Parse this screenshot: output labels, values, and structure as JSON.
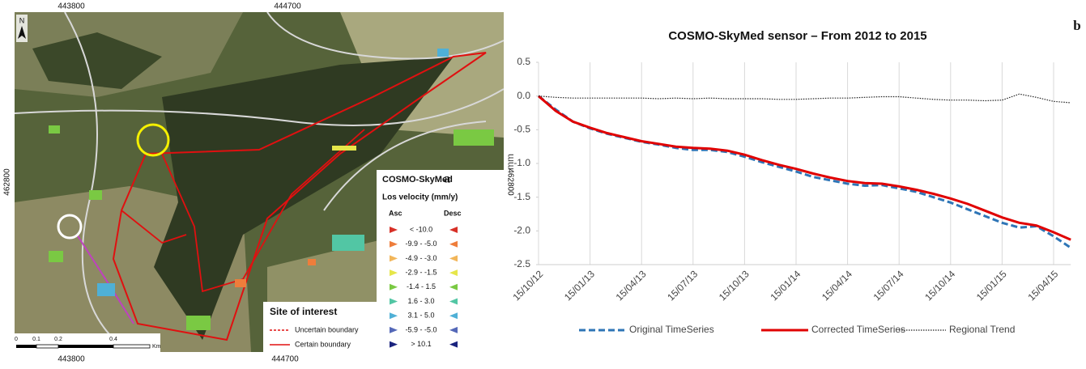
{
  "map": {
    "north": "N",
    "panel": "a",
    "coords": {
      "top": [
        "443800",
        "444700"
      ],
      "bottom": [
        "443800",
        "444700"
      ],
      "left": "462800",
      "right": "462800"
    },
    "legend": {
      "title": "COSMO-SkyMed",
      "subtitle": "Los velocity (mm/y)",
      "asc": "Asc",
      "desc": "Desc",
      "classes": [
        {
          "label": "< -10.0",
          "color": "#d73027"
        },
        {
          "label": "-9.9 - -5.0",
          "color": "#ee7d3b"
        },
        {
          "label": "-4.9 - -3.0",
          "color": "#f2b65a"
        },
        {
          "label": "-2.9 - -1.5",
          "color": "#e6e64a"
        },
        {
          "label": "-1.4 - 1.5",
          "color": "#7ac943"
        },
        {
          "label": "1.6 - 3.0",
          "color": "#52c6a4"
        },
        {
          "label": "3.1 - 5.0",
          "color": "#4fb0d6"
        },
        {
          "label": "-5.9 - -5.0",
          "color": "#5468b8"
        },
        {
          "label": "> 10.1",
          "color": "#1a237e"
        }
      ]
    },
    "site_legend": {
      "title": "Site of interest",
      "items": [
        "Uncertain boundary",
        "Certain boundary"
      ]
    },
    "scale": [
      "0",
      "0.1",
      "0.2",
      "0.4",
      "Km"
    ]
  },
  "chart_data": {
    "type": "line",
    "title": "COSMO-SkyMed sensor – From 2012 to 2015",
    "panel": "b",
    "ylabel": "mm",
    "categories": [
      "15/10/12",
      null,
      null,
      "15/01/13",
      null,
      null,
      "15/04/13",
      null,
      null,
      "15/07/13",
      null,
      null,
      "15/10/13",
      null,
      null,
      "15/01/14",
      null,
      null,
      "15/04/14",
      null,
      null,
      "15/07/14",
      null,
      null,
      "15/10/14",
      null,
      null,
      "15/01/15",
      null,
      null,
      "15/04/15",
      null
    ],
    "series": [
      {
        "name": "Original TimeSeries",
        "color": "#2e75b6",
        "style": "dashed",
        "values": [
          0.0,
          -0.2,
          -0.38,
          -0.48,
          -0.56,
          -0.62,
          -0.68,
          -0.72,
          -0.77,
          -0.8,
          -0.8,
          -0.83,
          -0.9,
          -0.98,
          -1.05,
          -1.12,
          -1.2,
          -1.25,
          -1.3,
          -1.33,
          -1.32,
          -1.37,
          -1.42,
          -1.5,
          -1.58,
          -1.68,
          -1.78,
          -1.88,
          -1.95,
          -1.93,
          -2.08,
          -2.25
        ]
      },
      {
        "name": "Corrected TimeSeries",
        "color": "#e00000",
        "style": "solid",
        "values": [
          0.0,
          -0.22,
          -0.38,
          -0.47,
          -0.55,
          -0.61,
          -0.67,
          -0.71,
          -0.75,
          -0.77,
          -0.78,
          -0.81,
          -0.87,
          -0.95,
          -1.02,
          -1.08,
          -1.15,
          -1.21,
          -1.26,
          -1.29,
          -1.3,
          -1.34,
          -1.39,
          -1.45,
          -1.52,
          -1.6,
          -1.7,
          -1.8,
          -1.88,
          -1.92,
          -2.02,
          -2.13
        ]
      },
      {
        "name": "Regional Trend",
        "color": "#222222",
        "style": "dotted",
        "values": [
          0.0,
          -0.02,
          -0.03,
          -0.03,
          -0.03,
          -0.03,
          -0.03,
          -0.04,
          -0.03,
          -0.04,
          -0.03,
          -0.04,
          -0.04,
          -0.04,
          -0.05,
          -0.05,
          -0.04,
          -0.03,
          -0.03,
          -0.02,
          -0.01,
          -0.01,
          -0.03,
          -0.05,
          -0.06,
          -0.06,
          -0.07,
          -0.06,
          0.03,
          -0.02,
          -0.08,
          -0.1
        ]
      }
    ],
    "ylim": [
      -2.5,
      0.5
    ],
    "yticks": [
      0.5,
      {
        "value": 0,
        "label": "0.0"
      },
      -0.5,
      {
        "value": -1,
        "label": "-1.0"
      },
      -1.5,
      {
        "value": -2,
        "label": "-2.0"
      },
      -2.5
    ],
    "grid": "x",
    "legend": "bottom"
  }
}
